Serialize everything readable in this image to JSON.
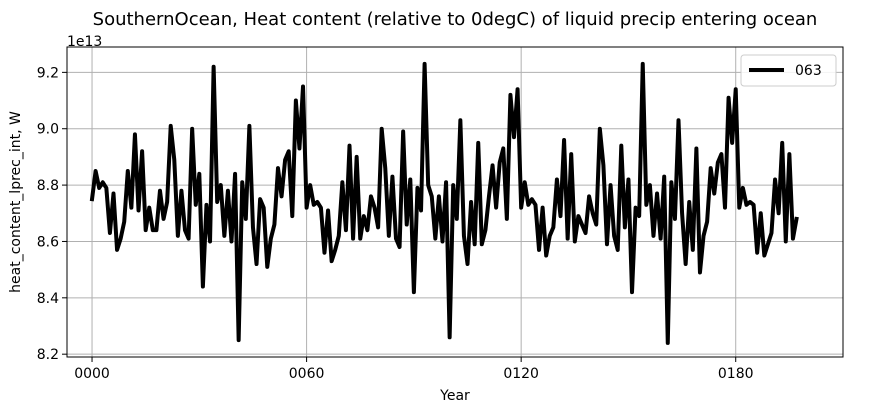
{
  "chart_data": {
    "type": "line",
    "title": "SouthernOcean, Heat content (relative to 0degC) of liquid precip entering ocean",
    "xlabel": "Year",
    "ylabel": "heat_content_lprec_int, W",
    "y_scale_label": "1e13",
    "xlim": [
      -7,
      210
    ],
    "ylim": [
      8.19,
      9.29
    ],
    "xticks": [
      {
        "value": 0,
        "label": "0000"
      },
      {
        "value": 60,
        "label": "0060"
      },
      {
        "value": 120,
        "label": "0120"
      },
      {
        "value": 180,
        "label": "0180"
      }
    ],
    "yticks": [
      {
        "value": 8.2,
        "label": "8.2"
      },
      {
        "value": 8.4,
        "label": "8.4"
      },
      {
        "value": 8.6,
        "label": "8.6"
      },
      {
        "value": 8.8,
        "label": "8.8"
      },
      {
        "value": 9.0,
        "label": "9.0"
      },
      {
        "value": 9.2,
        "label": "9.2"
      }
    ],
    "grid": true,
    "legend_position": "top-right",
    "series": [
      {
        "name": "063",
        "color": "#000000",
        "x_start": 0,
        "x_step": 1,
        "values": [
          8.75,
          8.85,
          8.79,
          8.81,
          8.79,
          8.63,
          8.77,
          8.57,
          8.61,
          8.67,
          8.85,
          8.72,
          8.98,
          8.71,
          8.92,
          8.64,
          8.72,
          8.64,
          8.64,
          8.78,
          8.68,
          8.74,
          9.01,
          8.89,
          8.62,
          8.78,
          8.64,
          8.61,
          9.0,
          8.73,
          8.84,
          8.44,
          8.73,
          8.6,
          9.22,
          8.74,
          8.8,
          8.62,
          8.78,
          8.6,
          8.84,
          8.25,
          8.81,
          8.68,
          9.01,
          8.65,
          8.52,
          8.75,
          8.72,
          8.51,
          8.61,
          8.66,
          8.86,
          8.76,
          8.89,
          8.92,
          8.69,
          9.1,
          8.93,
          9.15,
          8.72,
          8.8,
          8.73,
          8.74,
          8.72,
          8.56,
          8.71,
          8.53,
          8.57,
          8.62,
          8.81,
          8.64,
          8.94,
          8.61,
          8.9,
          8.61,
          8.69,
          8.64,
          8.76,
          8.72,
          8.65,
          9.0,
          8.86,
          8.62,
          8.83,
          8.61,
          8.58,
          8.99,
          8.66,
          8.82,
          8.42,
          8.79,
          8.71,
          9.23,
          8.8,
          8.76,
          8.61,
          8.76,
          8.6,
          8.81,
          8.26,
          8.8,
          8.68,
          9.03,
          8.62,
          8.52,
          8.74,
          8.59,
          8.95,
          8.59,
          8.64,
          8.76,
          8.87,
          8.72,
          8.88,
          8.93,
          8.68,
          9.12,
          8.97,
          9.14,
          8.72,
          8.81,
          8.73,
          8.75,
          8.73,
          8.57,
          8.72,
          8.55,
          8.62,
          8.65,
          8.82,
          8.69,
          8.96,
          8.61,
          8.91,
          8.6,
          8.69,
          8.66,
          8.63,
          8.76,
          8.7,
          8.66,
          9.0,
          8.87,
          8.59,
          8.8,
          8.62,
          8.57,
          8.94,
          8.65,
          8.82,
          8.42,
          8.72,
          8.69,
          9.23,
          8.73,
          8.8,
          8.62,
          8.77,
          8.61,
          8.83,
          8.24,
          8.81,
          8.68,
          9.03,
          8.7,
          8.52,
          8.74,
          8.57,
          8.93,
          8.49,
          8.62,
          8.67,
          8.86,
          8.77,
          8.88,
          8.91,
          8.72,
          9.11,
          8.95,
          9.14,
          8.72,
          8.79,
          8.73,
          8.74,
          8.73,
          8.56,
          8.7,
          8.55,
          8.59,
          8.63,
          8.82,
          8.7,
          8.95,
          8.6,
          8.91,
          8.61,
          8.68
        ]
      }
    ]
  }
}
